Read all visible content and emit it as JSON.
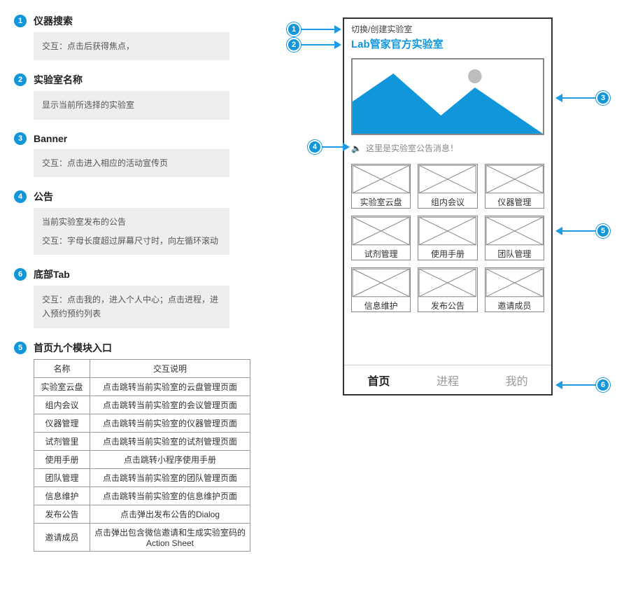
{
  "colors": {
    "accent": "#1296db",
    "arrow": "#1c9be6",
    "panel_bg": "#eeeeee",
    "panel_text": "#555555",
    "border": "#888888",
    "tab_inactive": "#999999",
    "tab_active": "#222222",
    "banner_fill": "#1296db"
  },
  "annotations": [
    {
      "num": "1",
      "title": "仪器搜索",
      "body": "交互：点击后获得焦点，"
    },
    {
      "num": "2",
      "title": "实验室名称",
      "body": "显示当前所选择的实验室"
    },
    {
      "num": "3",
      "title": "Banner",
      "body": "交互：点击进入相应的活动宣传页"
    },
    {
      "num": "4",
      "title": "公告",
      "body": "当前实验室发布的公告",
      "body2": "交互：字母长度超过屏幕尺寸时，向左循环滚动"
    },
    {
      "num": "6",
      "title": "底部Tab",
      "body": "交互：点击我的，进入个人中心；点击进程，进入预约预约列表"
    },
    {
      "num": "5",
      "title": "首页九个模块入口"
    }
  ],
  "modules_table": {
    "columns": [
      "名称",
      "交互说明"
    ],
    "rows": [
      [
        "实验室云盘",
        "点击跳转当前实验室的云盘管理页面"
      ],
      [
        "组内会议",
        "点击跳转当前实验室的会议管理页面"
      ],
      [
        "仪器管理",
        "点击跳转当前实验室的仪器管理页面"
      ],
      [
        "试剂管里",
        "点击跳转当前实验室的试剂管理页面"
      ],
      [
        "使用手册",
        "点击跳转小程序使用手册"
      ],
      [
        "团队管理",
        "点击跳转当前实验室的团队管理页面"
      ],
      [
        "信息维护",
        "点击跳转当前实验室的信息维护页面"
      ],
      [
        "发布公告",
        "点击弹出发布公告的Dialog"
      ],
      [
        "邀请成员",
        "点击弹出包含微信邀请和生成实验室码的Action Sheet"
      ]
    ]
  },
  "phone": {
    "switch_text": "切换/创建实验室",
    "lab_title": "Lab管家官方实验室",
    "announcement": "这里是实验室公告消息！",
    "tiles": [
      "实验室云盘",
      "组内会议",
      "仪器管理",
      "试剂管理",
      "使用手册",
      "团队管理",
      "信息维护",
      "发布公告",
      "邀请成员"
    ],
    "tabs": [
      "首页",
      "进程",
      "我的"
    ],
    "active_tab_index": 0
  },
  "callouts": {
    "c1": "1",
    "c2": "2",
    "c3": "3",
    "c4": "4",
    "c5": "5",
    "c6": "6"
  }
}
